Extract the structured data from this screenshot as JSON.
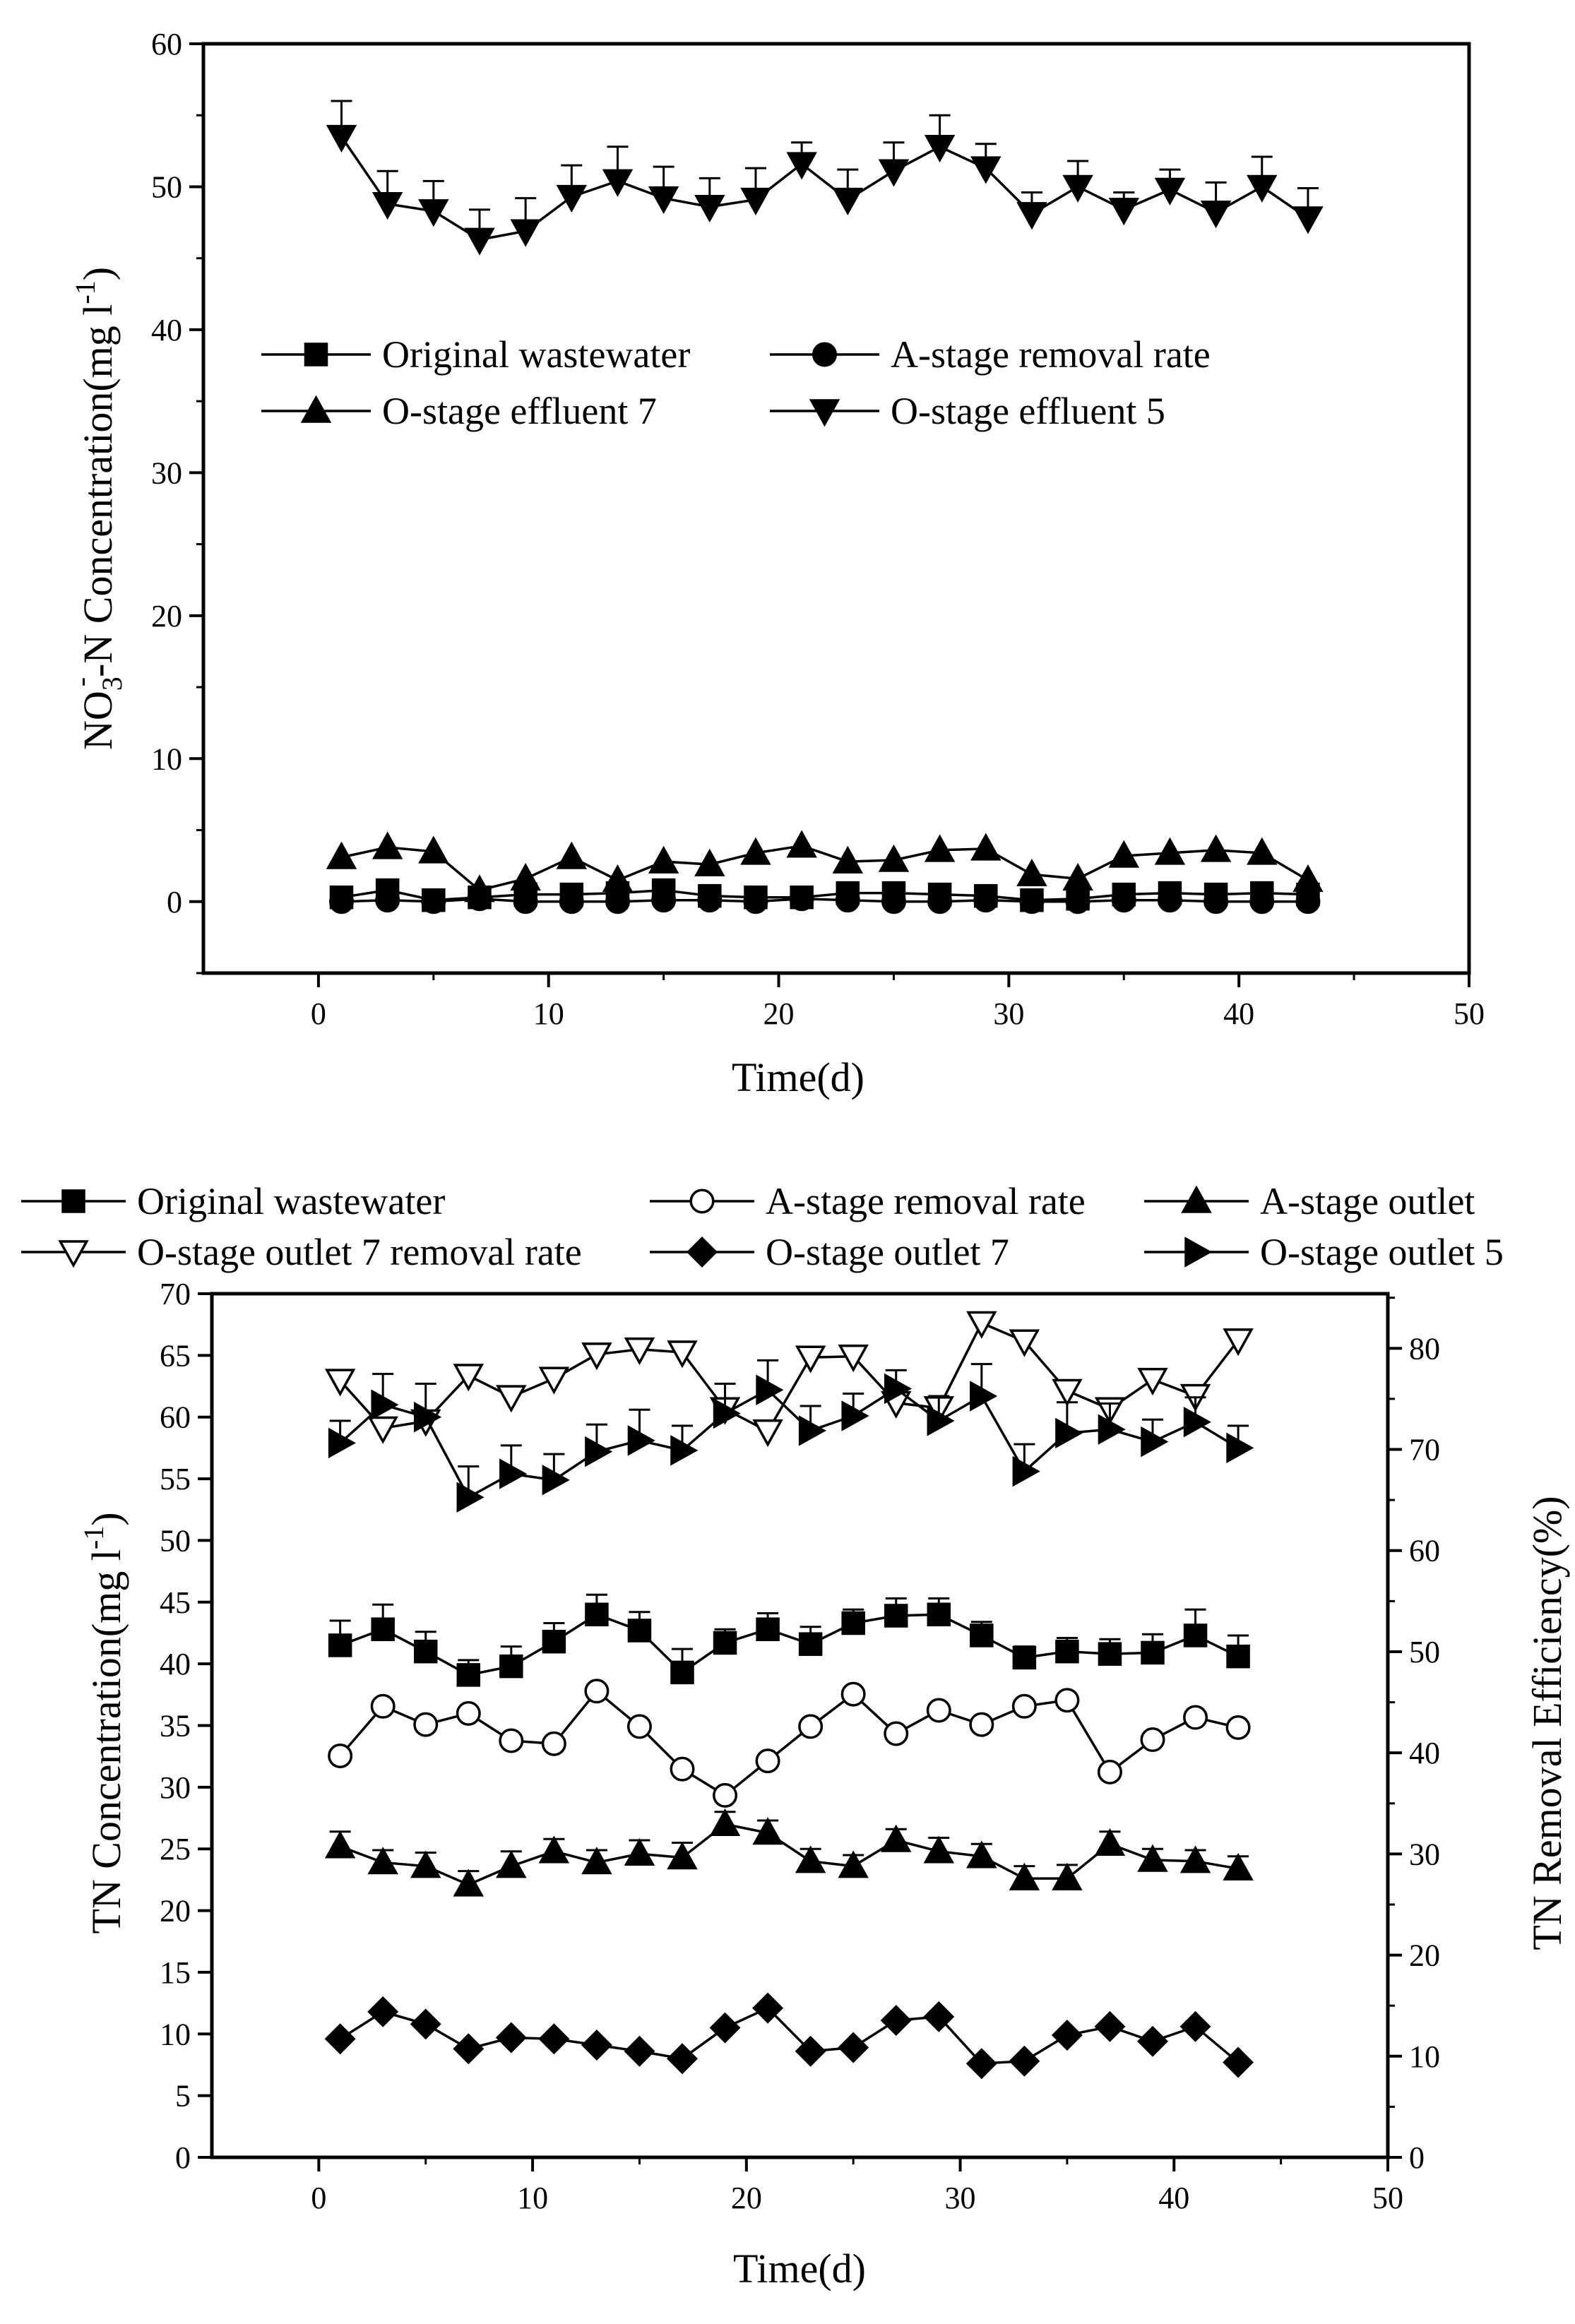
{
  "chart_data": [
    {
      "type": "line",
      "xlabel": "Time(d)",
      "ylabel_main": "NO",
      "ylabel_sub": "3",
      "ylabel_sup": "-",
      "ylabel_rest": "-N Concentration(mg l",
      "ylabel_exp": "-1",
      "ylabel_end": ")",
      "xlim": [
        -5,
        50
      ],
      "ylim": [
        -5,
        60
      ],
      "xticks": [
        "0",
        "10",
        "20",
        "30",
        "40",
        "50"
      ],
      "yticks": [
        "0",
        "10",
        "20",
        "30",
        "40",
        "50",
        "60"
      ],
      "x": [
        1,
        3,
        5,
        7,
        9,
        11,
        13,
        15,
        17,
        19,
        21,
        23,
        25,
        27,
        29,
        31,
        33,
        35,
        37,
        39,
        41,
        43
      ],
      "legend_position": "upper-middle",
      "series": [
        {
          "name": "Original wastewater",
          "marker": "square",
          "values": [
            0.3,
            0.8,
            0.1,
            0.3,
            0.5,
            0.5,
            0.6,
            0.8,
            0.4,
            0.3,
            0.3,
            0.6,
            0.6,
            0.5,
            0.4,
            0.1,
            0.2,
            0.5,
            0.6,
            0.5,
            0.6,
            0.5
          ]
        },
        {
          "name": "A-stage removal rate",
          "marker": "circle",
          "values": [
            0.0,
            0.1,
            0.0,
            0.2,
            0.0,
            0.0,
            0.0,
            0.1,
            0.1,
            0.0,
            0.2,
            0.1,
            0.0,
            0.0,
            0.1,
            0.0,
            0.0,
            0.1,
            0.1,
            0.0,
            0.0,
            0.0
          ]
        },
        {
          "name": "O-stage effluent 7",
          "marker": "triangle-up",
          "values": [
            3.1,
            3.8,
            3.5,
            0.8,
            1.6,
            3.1,
            1.5,
            2.8,
            2.6,
            3.4,
            3.9,
            2.8,
            2.9,
            3.6,
            3.7,
            1.9,
            1.6,
            3.2,
            3.4,
            3.6,
            3.4,
            1.5
          ]
        },
        {
          "name": "O-stage effluent 5",
          "marker": "triangle-down",
          "values": [
            53.5,
            48.8,
            48.3,
            46.3,
            46.9,
            49.3,
            50.4,
            49.2,
            48.6,
            49.1,
            51.6,
            49.1,
            51.1,
            52.8,
            51.3,
            48.1,
            50.0,
            48.4,
            49.8,
            48.2,
            50.0,
            47.8
          ],
          "errors": [
            2.5,
            2.3,
            2.1,
            2.1,
            2.3,
            2.2,
            2.4,
            2.2,
            2.0,
            2.2,
            1.5,
            2.1,
            2.0,
            2.2,
            1.7,
            1.5,
            1.8,
            1.2,
            1.4,
            2.1,
            2.1,
            2.1
          ]
        }
      ]
    },
    {
      "type": "line",
      "xlabel": "Time(d)",
      "ylabel_left_main": "TN Concentration(mg l",
      "ylabel_left_exp": "-1",
      "ylabel_left_end": ")",
      "ylabel_right": "TN Removal Efficiency(%)",
      "xlim": [
        -5,
        50
      ],
      "ylim_left": [
        0,
        70
      ],
      "ylim_right": [
        0,
        85.4
      ],
      "xticks": [
        "0",
        "10",
        "20",
        "30",
        "40",
        "50"
      ],
      "yticks_left": [
        "0",
        "5",
        "10",
        "15",
        "20",
        "25",
        "30",
        "35",
        "40",
        "45",
        "50",
        "55",
        "60",
        "65",
        "70"
      ],
      "yticks_right": [
        "0",
        "10",
        "20",
        "30",
        "40",
        "50",
        "60",
        "70",
        "80"
      ],
      "x": [
        1,
        3,
        5,
        7,
        9,
        11,
        13,
        15,
        17,
        19,
        21,
        23,
        25,
        27,
        29,
        31,
        33,
        35,
        37,
        39,
        41,
        43
      ],
      "legend_position": "top, outside plot",
      "series": [
        {
          "name": "Original wastewater",
          "marker": "square",
          "axis": "left",
          "values": [
            41.5,
            42.8,
            41.0,
            39.1,
            39.8,
            41.8,
            44.0,
            42.7,
            39.3,
            41.7,
            42.8,
            41.6,
            43.3,
            43.9,
            44.0,
            42.3,
            40.5,
            41.0,
            40.8,
            40.9,
            42.3,
            40.6
          ],
          "errors": [
            2.0,
            2.0,
            1.6,
            1.2,
            1.6,
            1.5,
            1.6,
            1.5,
            1.9,
            1.1,
            1.3,
            1.4,
            1.1,
            1.4,
            1.3,
            1.1,
            0.9,
            1.1,
            1.2,
            1.5,
            2.1,
            1.7
          ]
        },
        {
          "name": "A-stage removal rate",
          "marker": "circle-open",
          "axis": "right",
          "values": [
            39.7,
            44.6,
            42.8,
            43.9,
            41.2,
            40.9,
            46.1,
            42.6,
            38.4,
            35.8,
            39.2,
            42.6,
            45.8,
            41.9,
            44.2,
            42.8,
            44.6,
            45.2,
            38.1,
            41.3,
            43.5,
            42.5
          ]
        },
        {
          "name": "A-stage outlet",
          "marker": "triangle-up",
          "axis": "left",
          "values": [
            25.2,
            23.9,
            23.6,
            22.1,
            23.6,
            24.8,
            23.9,
            24.6,
            24.3,
            27.0,
            26.3,
            24.0,
            23.6,
            25.7,
            24.8,
            24.4,
            22.6,
            22.6,
            25.4,
            24.1,
            24.0,
            23.4
          ],
          "errors": [
            1.2,
            1.0,
            1.1,
            1.1,
            1.2,
            1.0,
            1.0,
            1.1,
            1.2,
            1.0,
            1.0,
            1.0,
            0.9,
            0.9,
            1.1,
            1.0,
            1.0,
            1.1,
            1.0,
            0.9,
            0.9,
            1.0
          ]
        },
        {
          "name": "O-stage outlet 7 removal rate",
          "marker": "triangle-down-open",
          "axis": "right",
          "values": [
            76.8,
            72.1,
            72.8,
            77.3,
            75.2,
            77.0,
            79.4,
            79.9,
            79.6,
            74.0,
            71.8,
            79.1,
            79.2,
            74.6,
            74.1,
            82.5,
            80.7,
            75.8,
            74.0,
            76.9,
            75.3,
            80.8
          ]
        },
        {
          "name": "O-stage outlet 7",
          "marker": "diamond",
          "axis": "left",
          "values": [
            9.6,
            11.8,
            10.8,
            8.8,
            9.7,
            9.6,
            9.1,
            8.6,
            8.0,
            10.5,
            12.1,
            8.6,
            8.9,
            11.1,
            11.4,
            7.6,
            7.8,
            9.9,
            10.6,
            9.4,
            10.6,
            7.7
          ]
        },
        {
          "name": "O-stage outlet 5",
          "marker": "triangle-right",
          "axis": "left",
          "values": [
            57.9,
            61.0,
            60.0,
            53.5,
            55.4,
            54.9,
            57.2,
            58.1,
            57.3,
            60.3,
            62.2,
            58.9,
            60.1,
            62.3,
            59.7,
            61.7,
            55.6,
            58.7,
            59.0,
            58.0,
            59.6,
            57.5
          ],
          "errors": [
            1.8,
            2.5,
            2.7,
            2.5,
            2.3,
            2.1,
            2.2,
            2.5,
            2.0,
            2.4,
            2.4,
            2.0,
            1.8,
            1.5,
            2.0,
            2.6,
            2.2,
            2.5,
            2.1,
            1.8,
            2.0,
            1.8
          ]
        }
      ]
    }
  ]
}
